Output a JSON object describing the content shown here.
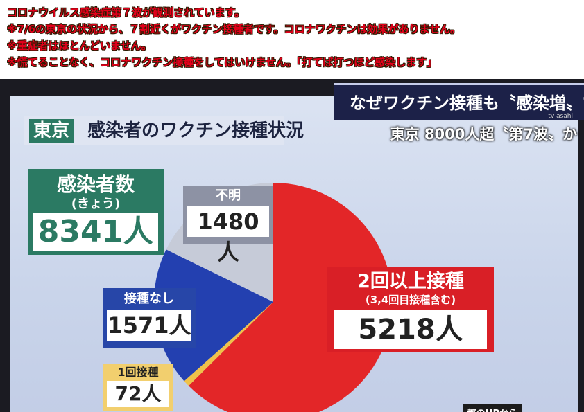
{
  "captions": [
    "コロナウイルス感染症第７波が観測されています。",
    "※7/6の東京の状況から、７割近くがワクチン接種者です。コロナワクチンは効果がありません。",
    "※重症者はほとんどいません。",
    "※慌てることなく、コロナワクチン接種をしてはいけません。「打てば打つほど感染します」"
  ],
  "header": {
    "region_tag": "東京",
    "title": "感染者のワクチン接種状況"
  },
  "banner": {
    "title": "なぜワクチン接種も〝感染増〟?",
    "subtitle": "東京 8000人超〝第7波〟か",
    "logo": "tv asahi"
  },
  "total": {
    "label": "感染者数",
    "sub": "(きょう)",
    "value": "8341人"
  },
  "source": "都のHPから",
  "chart_data": {
    "type": "pie",
    "total": 8341,
    "slices": [
      {
        "label": "2回以上接種",
        "sub": "(3,4回目接種含む)",
        "value": 5218,
        "value_text": "5218人",
        "color": "#e32628"
      },
      {
        "label": "1回接種",
        "value": 72,
        "value_text": "72人",
        "color": "#efc24a"
      },
      {
        "label": "接種なし",
        "value": 1571,
        "value_text": "1571人",
        "color": "#2340b0"
      },
      {
        "label": "不明",
        "value": 1480,
        "value_text": "1480人",
        "color": "#c6cbd8"
      }
    ]
  }
}
